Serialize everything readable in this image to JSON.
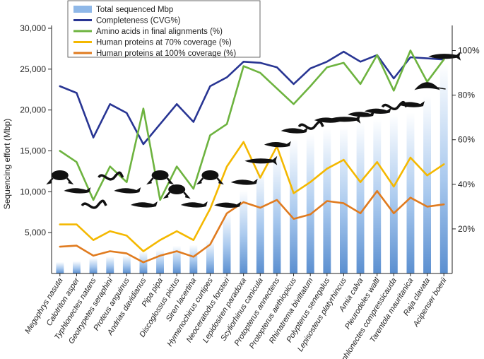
{
  "chart_data": {
    "type": "bar",
    "ylabel": "Sequencing effort (Mbp)",
    "y2label": "",
    "ylim": [
      0,
      30000
    ],
    "y2lim": [
      0,
      1.1
    ],
    "yticks": [
      "5,000",
      "10,000",
      "15,000",
      "20,000",
      "25,000",
      "30,000"
    ],
    "y2ticks": [
      "20%",
      "40%",
      "60%",
      "80%",
      "100%"
    ],
    "grid": false,
    "legend_placement": "top-left",
    "categories": [
      "Megophrys nasuta",
      "Calotriton asper",
      "Typhlonectes natans",
      "Geotrypetes seraphini",
      "Proteus anguinus",
      "Andrias davidianus",
      "Pipa pipa",
      "Discoglossus pictus",
      "Siren lacertina",
      "Hymenochirus curtipes",
      "Neoceratodus forsteri",
      "Lepidosiren paradoxa",
      "Scyliorhinus canicula",
      "Protopterus annectens",
      "Protopterus aethiopicus",
      "Rhinatrema bivittatum",
      "Polypterus senegalus",
      "Lepisosteus platyrhincus",
      "Amia calva",
      "Pleurodeles waltl",
      "Typhlonectes compressicauda",
      "Tarentola mauritanica",
      "Raja clavata",
      "Acipenser boerii"
    ],
    "series": [
      {
        "name": "Total sequenced Mbp",
        "color": "#6fa3dc",
        "axis": "left",
        "values": [
          1400,
          1500,
          1900,
          2100,
          2200,
          2700,
          2900,
          3400,
          3500,
          4000,
          7400,
          10200,
          12900,
          14800,
          16500,
          17100,
          17800,
          18000,
          18500,
          18900,
          19500,
          19700,
          21700,
          25700
        ]
      },
      {
        "name": "Completeness (CVG%)",
        "color": "#283593",
        "axis": "right",
        "values": [
          0.84,
          0.81,
          0.61,
          0.76,
          0.72,
          0.58,
          0.67,
          0.76,
          0.68,
          0.84,
          0.88,
          0.95,
          0.945,
          0.925,
          0.85,
          0.92,
          0.95,
          0.995,
          0.95,
          0.98,
          0.875,
          0.97,
          0.965,
          0.96
        ]
      },
      {
        "name": "Amino acids in final alignments (%)",
        "color": "#6db33f",
        "axis": "right",
        "values": [
          0.55,
          0.5,
          0.33,
          0.48,
          0.41,
          0.74,
          0.33,
          0.48,
          0.38,
          0.62,
          0.67,
          0.93,
          0.9,
          0.83,
          0.76,
          0.84,
          0.925,
          0.945,
          0.85,
          0.98,
          0.82,
          1.0,
          0.86,
          0.96
        ]
      },
      {
        "name": "Human proteins at 70% coverage (%)",
        "color": "#f4b800",
        "axis": "right",
        "values": [
          0.22,
          0.22,
          0.15,
          0.19,
          0.17,
          0.1,
          0.15,
          0.19,
          0.15,
          0.29,
          0.48,
          0.59,
          0.43,
          0.57,
          0.36,
          0.41,
          0.47,
          0.51,
          0.41,
          0.5,
          0.39,
          0.52,
          0.44,
          0.49
        ]
      },
      {
        "name": "Human proteins at 100% coverage (%)",
        "color": "#e07b1f",
        "axis": "right",
        "values": [
          0.12,
          0.125,
          0.08,
          0.1,
          0.09,
          0.05,
          0.08,
          0.1,
          0.075,
          0.13,
          0.27,
          0.32,
          0.295,
          0.33,
          0.245,
          0.265,
          0.325,
          0.315,
          0.27,
          0.37,
          0.27,
          0.34,
          0.3,
          0.31
        ]
      }
    ]
  },
  "silhouettes": [
    "frog-silhouette",
    "newt-silhouette",
    "caecilian-silhouette",
    "caecilian-silhouette",
    "olm-silhouette",
    "giant-salamander-silhouette",
    "pipa-frog-silhouette",
    "frog-silhouette",
    "siren-silhouette",
    "frog-silhouette",
    "lungfish-silhouette",
    "lungfish-silhouette",
    "shark-silhouette",
    "lungfish-silhouette",
    "lungfish-silhouette",
    "caecilian-silhouette",
    "bichir-silhouette",
    "gar-silhouette",
    "bowfin-silhouette",
    "newt-silhouette",
    "caecilian-silhouette",
    "gecko-silhouette",
    "ray-silhouette",
    "sturgeon-silhouette"
  ]
}
